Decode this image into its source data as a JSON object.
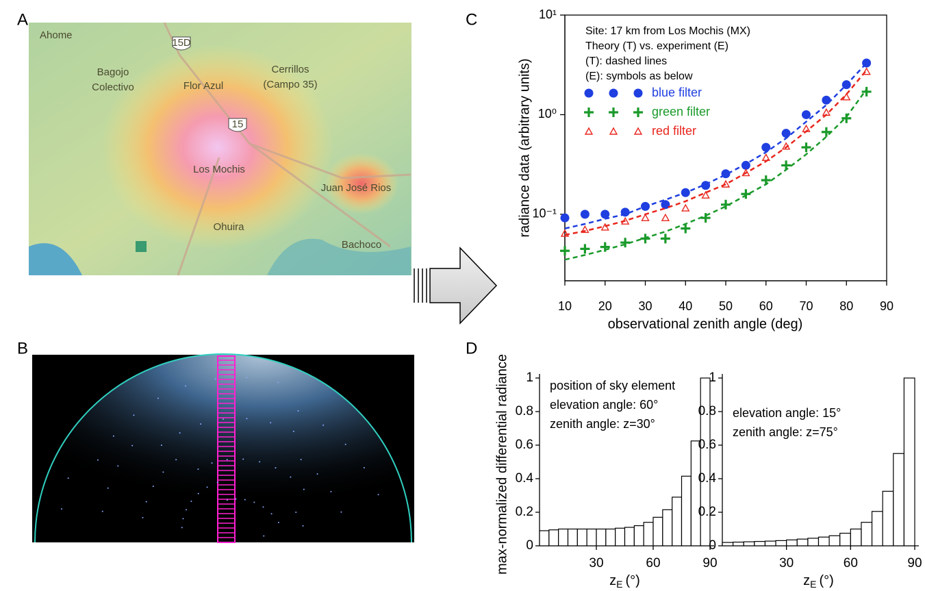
{
  "panel_labels": [
    "A",
    "B",
    "C",
    "D"
  ],
  "map": {
    "places": [
      "Ahome",
      "Bagojo",
      "Colectivo",
      "Flor Azul",
      "Cerrillos",
      "(Campo 35)",
      "Los Mochis",
      "Juan José Rios",
      "Ohuira",
      "Bachoco"
    ],
    "shields": [
      "15D",
      "15"
    ]
  },
  "chart_data": [
    {
      "type": "scatter",
      "xlabel": "observational zenith angle (deg)",
      "ylabel": "radiance data (arbitrary units)",
      "annotations": [
        "Site: 17 km from Los Mochis (MX)",
        "Theory (T) vs. experiment (E)",
        "(T): dashed lines",
        "(E): symbols as below"
      ],
      "log_y": true,
      "xlim": [
        10,
        90
      ],
      "xticks": [
        10,
        20,
        30,
        40,
        50,
        60,
        70,
        80,
        90
      ],
      "ylim": [
        0.0215,
        10
      ],
      "yticks": [
        {
          "value": 10,
          "label": "10¹"
        },
        {
          "value": 1,
          "label": "10⁰"
        },
        {
          "value": 0.1,
          "label": "10⁻¹"
        }
      ],
      "x": [
        10,
        15,
        20,
        25,
        30,
        35,
        40,
        45,
        50,
        55,
        60,
        65,
        70,
        75,
        80,
        85
      ],
      "series": [
        {
          "name": "blue filter",
          "color": "#1f3fe0",
          "marker": "circle",
          "values": [
            0.092,
            0.1,
            0.1,
            0.105,
            0.12,
            0.125,
            0.165,
            0.195,
            0.255,
            0.31,
            0.47,
            0.65,
            1.0,
            1.4,
            2.0,
            3.3
          ]
        },
        {
          "name": "green filter",
          "color": "#1a9a2a",
          "marker": "plus",
          "values": [
            0.043,
            0.045,
            0.047,
            0.052,
            0.057,
            0.057,
            0.072,
            0.092,
            0.125,
            0.16,
            0.22,
            0.31,
            0.47,
            0.67,
            0.92,
            1.7
          ]
        },
        {
          "name": "red filter",
          "color": "#e8261e",
          "marker": "triangle",
          "values": [
            0.064,
            0.07,
            0.074,
            0.085,
            0.092,
            0.092,
            0.115,
            0.155,
            0.2,
            0.26,
            0.37,
            0.48,
            0.72,
            1.05,
            1.5,
            2.7
          ]
        },
        {
          "color": "#1f3fe0",
          "style": "dashed",
          "values": [
            0.072,
            0.08,
            0.09,
            0.1,
            0.12,
            0.14,
            0.165,
            0.2,
            0.25,
            0.32,
            0.42,
            0.58,
            0.85,
            1.25,
            2.0,
            3.3
          ]
        },
        {
          "color": "#e8261e",
          "style": "dashed",
          "values": [
            0.062,
            0.068,
            0.076,
            0.086,
            0.1,
            0.115,
            0.135,
            0.165,
            0.2,
            0.26,
            0.34,
            0.47,
            0.68,
            1.0,
            1.6,
            2.8
          ]
        },
        {
          "color": "#1a9a2a",
          "style": "dashed",
          "values": [
            0.035,
            0.039,
            0.044,
            0.05,
            0.058,
            0.067,
            0.08,
            0.097,
            0.12,
            0.155,
            0.2,
            0.28,
            0.4,
            0.6,
            0.95,
            1.8
          ]
        }
      ]
    },
    {
      "type": "histogram",
      "ylabel": "max-normalized differential radiance",
      "xlabel": "z",
      "xlabel_sub": "E",
      "xlabel_unit": "(°)",
      "annotations": [
        "position of sky element",
        "elevation angle: 60°",
        "zenith angle: z=30°"
      ],
      "xlim": [
        0,
        90
      ],
      "xticks": [
        30,
        60,
        90
      ],
      "ylim": [
        0,
        1
      ],
      "yticks": [
        0,
        0.2,
        0.4,
        0.6,
        0.8,
        1
      ],
      "bins": [
        0,
        5,
        10,
        15,
        20,
        25,
        30,
        35,
        40,
        45,
        50,
        55,
        60,
        65,
        70,
        75,
        80,
        85,
        90
      ],
      "values": [
        0.09,
        0.095,
        0.1,
        0.1,
        0.1,
        0.1,
        0.1,
        0.1,
        0.105,
        0.11,
        0.12,
        0.14,
        0.17,
        0.215,
        0.29,
        0.415,
        0.625,
        1.0
      ]
    },
    {
      "type": "histogram",
      "xlabel": "z",
      "xlabel_sub": "E",
      "xlabel_unit": "(°)",
      "annotations": [
        "elevation angle: 15°",
        "zenith angle: z=75°"
      ],
      "xlim": [
        0,
        90
      ],
      "xticks": [
        30,
        60,
        90
      ],
      "ylim": [
        0,
        1
      ],
      "yticks": [
        0,
        0.2,
        0.4,
        0.6,
        0.8,
        1
      ],
      "bins": [
        0,
        5,
        10,
        15,
        20,
        25,
        30,
        35,
        40,
        45,
        50,
        55,
        60,
        65,
        70,
        75,
        80,
        85,
        90
      ],
      "values": [
        0.02,
        0.022,
        0.024,
        0.026,
        0.028,
        0.031,
        0.035,
        0.04,
        0.045,
        0.052,
        0.06,
        0.075,
        0.1,
        0.14,
        0.205,
        0.325,
        0.55,
        1.0
      ]
    }
  ]
}
